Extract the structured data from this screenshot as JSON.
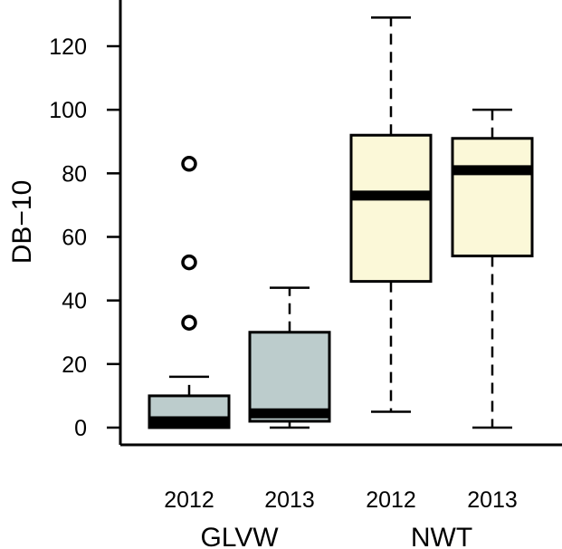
{
  "chart_data": {
    "type": "box",
    "ylabel": "DB−10",
    "yticks": [
      0,
      20,
      40,
      60,
      80,
      100,
      120
    ],
    "ylim": [
      -5,
      135
    ],
    "grid": false,
    "categories": [
      "2012",
      "2013",
      "2012",
      "2013"
    ],
    "groups": [
      "GLVW",
      "NWT"
    ],
    "boxes": [
      {
        "label": "2012",
        "group": "GLVW",
        "whisker_low": 0,
        "q1": 0,
        "median": 2,
        "q3": 10,
        "whisker_high": 16,
        "outliers": [
          33,
          52,
          83
        ],
        "color": "#bccccc"
      },
      {
        "label": "2013",
        "group": "GLVW",
        "whisker_low": 0,
        "q1": 2,
        "median": 4.5,
        "q3": 30,
        "whisker_high": 44,
        "outliers": [],
        "color": "#bccccc"
      },
      {
        "label": "2012",
        "group": "NWT",
        "whisker_low": 5,
        "q1": 46,
        "median": 73,
        "q3": 92,
        "whisker_high": 129,
        "outliers": [],
        "color": "#fbf8d8"
      },
      {
        "label": "2013",
        "group": "NWT",
        "whisker_low": 0,
        "q1": 54,
        "median": 81,
        "q3": 91,
        "whisker_high": 100,
        "outliers": [],
        "color": "#fbf8d8"
      }
    ]
  }
}
